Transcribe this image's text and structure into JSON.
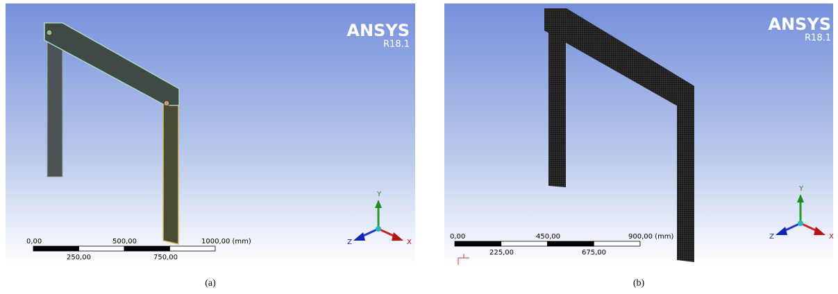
{
  "panels": [
    {
      "logo": "ANSYS",
      "version": "R18.1",
      "scale_top": [
        "0,00",
        "500,00",
        "1000,00 (mm)"
      ],
      "scale_bottom": [
        "250,00",
        "750,00"
      ],
      "axes": {
        "x": "X",
        "y": "Y",
        "z": "Z"
      },
      "caption": "(a)"
    },
    {
      "logo": "ANSYS",
      "version": "R18.1",
      "scale_top": [
        "0,00",
        "450,00",
        "900,00 (mm)"
      ],
      "scale_bottom": [
        "225,00",
        "675,00"
      ],
      "axes": {
        "x": "X",
        "y": "Y",
        "z": "Z"
      },
      "caption": "(b)"
    }
  ]
}
